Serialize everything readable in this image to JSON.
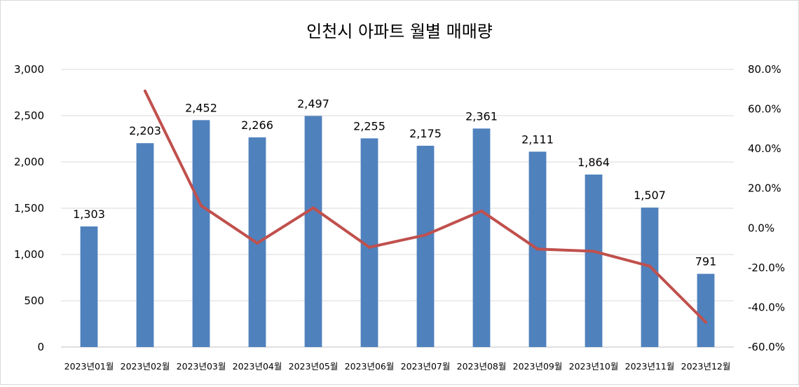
{
  "chart_data": {
    "type": "bar",
    "title": "인천시 아파트 월별 매매량",
    "xlabel": "",
    "ylabel": "",
    "categories": [
      "2023년01월",
      "2023년02월",
      "2023년03월",
      "2023년04월",
      "2023년05월",
      "2023년06월",
      "2023년07월",
      "2023년08월",
      "2023년09월",
      "2023년10월",
      "2023년11월",
      "2023년12월"
    ],
    "series": [
      {
        "type": "bar",
        "axis": "left",
        "color": "#4f81bd",
        "values": [
          1303,
          2203,
          2452,
          2266,
          2497,
          2255,
          2175,
          2361,
          2111,
          1864,
          1507,
          791
        ],
        "data_labels": [
          "1,303",
          "2,203",
          "2,452",
          "2,266",
          "2,497",
          "2,255",
          "2,175",
          "2,361",
          "2,111",
          "1,864",
          "1,507",
          "791"
        ]
      },
      {
        "type": "line",
        "axis": "right",
        "color": "#c0504d",
        "values": [
          null,
          69.1,
          11.3,
          -7.6,
          10.2,
          -9.7,
          -3.5,
          8.6,
          -10.6,
          -11.7,
          -19.2,
          -47.5
        ]
      }
    ],
    "ylim": [
      0,
      3000
    ],
    "y_ticks": [
      "0",
      "500",
      "1,000",
      "1,500",
      "2,000",
      "2,500",
      "3,000"
    ],
    "y2lim": [
      -60,
      80
    ],
    "y2_ticks": [
      "-60.0%",
      "-40.0%",
      "-20.0%",
      "0.0%",
      "20.0%",
      "40.0%",
      "60.0%",
      "80.0%"
    ],
    "grid": true,
    "legend": "none"
  }
}
